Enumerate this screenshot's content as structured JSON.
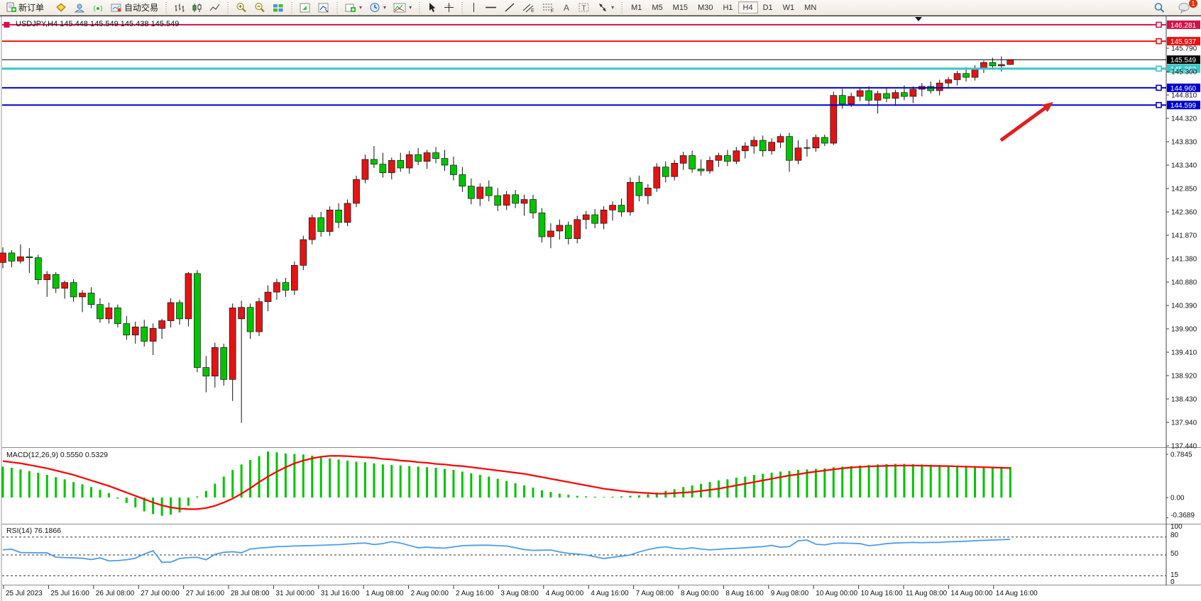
{
  "toolbar": {
    "new_order_label": "新订单",
    "autotrading_label": "自动交易",
    "timeframes": [
      "M1",
      "M5",
      "M15",
      "M30",
      "H1",
      "H4",
      "D1",
      "W1",
      "MN"
    ],
    "active_timeframe": "H4",
    "notification_count": "1",
    "icon_names": [
      "new-order-icon",
      "market-watch-icon",
      "profiles-icon",
      "signals-icon",
      "autotrading-icon",
      "bar-chart-icon",
      "candlestick-icon",
      "line-chart-icon",
      "zoom-in-icon",
      "zoom-out-icon",
      "tile-windows-icon",
      "indicators-icon",
      "objects-list-icon",
      "new-chart-icon",
      "periods-icon",
      "templates-icon",
      "cursor-icon",
      "crosshair-icon",
      "vertical-line-icon",
      "horizontal-line-icon",
      "trendline-icon",
      "equidistant-channel-icon",
      "fibonacci-icon",
      "text-icon",
      "text-label-icon",
      "arrow-objects-icon",
      "search-icon",
      "chat-icon"
    ]
  },
  "chart": {
    "title": "USDJPY,H4 145.448 145.549 145.438 145.549",
    "macd_label": "MACD(12,26,9) 0.5550 0.5329",
    "rsi_label": "RSI(14) 76.1866",
    "price_axis_ticks": [
      "145.790",
      "145.300",
      "144.810",
      "144.320",
      "143.830",
      "143.340",
      "142.850",
      "142.360",
      "141.870",
      "141.380",
      "140.880",
      "140.390",
      "139.900",
      "139.410",
      "138.920",
      "138.430",
      "137.940",
      "137.440"
    ],
    "macd_axis_ticks": [
      "0.7845",
      "0.00",
      "-0.3689"
    ],
    "rsi_axis_ticks": [
      "100",
      "80",
      "50",
      "15",
      "0"
    ],
    "time_axis_labels": [
      "25 Jul 2023",
      "25 Jul 16:00",
      "26 Jul 08:00",
      "27 Jul 00:00",
      "27 Jul 16:00",
      "28 Jul 08:00",
      "31 Jul 00:00",
      "31 Jul 16:00",
      "1 Aug 08:00",
      "2 Aug 00:00",
      "2 Aug 16:00",
      "3 Aug 08:00",
      "4 Aug 00:00",
      "4 Aug 16:00",
      "7 Aug 08:00",
      "8 Aug 00:00",
      "8 Aug 16:00",
      "9 Aug 08:00",
      "10 Aug 00:00",
      "10 Aug 16:00",
      "11 Aug 08:00",
      "14 Aug 00:00",
      "14 Aug 16:00"
    ],
    "colors": {
      "bull_candle": "#e21414",
      "bear_candle": "#00c400",
      "macd_histogram": "#00c400",
      "macd_signal": "#ff0000",
      "rsi_line": "#4a9dea",
      "annotation_arrow": "#e01f1f",
      "hline_crimson": "#d21349",
      "hline_red": "#ee1111",
      "hline_cyan": "#35c8c8",
      "hline_blue": "#0000cd",
      "current_price_badge": "#000000"
    },
    "horizontal_lines": [
      {
        "price": 146.281,
        "label": "146.281",
        "color": "#d21349",
        "width": 2,
        "left_handle": true
      },
      {
        "price": 145.937,
        "label": "145.937",
        "color": "#ee1111",
        "width": 2,
        "left_handle": false
      },
      {
        "price": 145.549,
        "label": "145.549",
        "color": "#000000",
        "width": 1,
        "left_handle": false
      },
      {
        "price": 145.362,
        "label": "145.362",
        "color": "#35c8c8",
        "width": 3,
        "left_handle": false
      },
      {
        "price": 144.96,
        "label": "144.960",
        "color": "#0000cd",
        "width": 2,
        "left_handle": false
      },
      {
        "price": 144.599,
        "label": "144.599",
        "color": "#0000cd",
        "width": 2,
        "left_handle": false
      }
    ],
    "current_price": "145.549"
  },
  "chart_data": {
    "type": "candlestick",
    "symbol": "USDJPY",
    "timeframe": "H4",
    "title": "USDJPY,H4 145.448 145.549 145.438 145.549",
    "ylim": [
      137.44,
      146.4
    ],
    "price_gridline_step": 0.49,
    "x_range_labels": [
      "25 Jul 2023",
      "14 Aug 16:00"
    ],
    "ohlc": [
      [
        141.3,
        141.62,
        141.18,
        141.5
      ],
      [
        141.5,
        141.56,
        141.2,
        141.33
      ],
      [
        141.33,
        141.68,
        141.28,
        141.42
      ],
      [
        141.42,
        141.6,
        141.08,
        141.4
      ],
      [
        141.4,
        141.46,
        140.84,
        140.94
      ],
      [
        140.94,
        141.12,
        140.58,
        141.05
      ],
      [
        141.05,
        141.1,
        140.66,
        140.76
      ],
      [
        140.76,
        140.92,
        140.54,
        140.88
      ],
      [
        140.88,
        140.95,
        140.48,
        140.58
      ],
      [
        140.58,
        140.72,
        140.26,
        140.66
      ],
      [
        140.66,
        140.78,
        140.34,
        140.42
      ],
      [
        140.42,
        140.55,
        140.04,
        140.12
      ],
      [
        140.12,
        140.46,
        140.02,
        140.35
      ],
      [
        140.35,
        140.42,
        139.94,
        140.02
      ],
      [
        140.02,
        140.18,
        139.68,
        139.78
      ],
      [
        139.78,
        140.06,
        139.6,
        139.95
      ],
      [
        139.95,
        140.1,
        139.54,
        139.65
      ],
      [
        139.65,
        140.02,
        139.36,
        139.92
      ],
      [
        139.92,
        140.12,
        139.7,
        140.08
      ],
      [
        140.08,
        140.55,
        139.94,
        140.46
      ],
      [
        140.46,
        140.52,
        140.0,
        140.12
      ],
      [
        140.12,
        141.1,
        139.96,
        141.07
      ],
      [
        141.07,
        141.14,
        139.0,
        139.1
      ],
      [
        139.1,
        139.34,
        138.58,
        138.92
      ],
      [
        138.92,
        139.62,
        138.68,
        139.52
      ],
      [
        139.52,
        139.6,
        138.72,
        138.85
      ],
      [
        138.85,
        140.44,
        138.4,
        140.35
      ],
      [
        140.12,
        140.5,
        137.94,
        140.36
      ],
      [
        140.36,
        140.44,
        139.7,
        139.85
      ],
      [
        139.85,
        140.56,
        139.76,
        140.48
      ],
      [
        140.48,
        140.82,
        140.28,
        140.68
      ],
      [
        140.68,
        140.96,
        140.52,
        140.88
      ],
      [
        140.88,
        140.98,
        140.58,
        140.72
      ],
      [
        140.72,
        141.32,
        140.62,
        141.24
      ],
      [
        141.24,
        141.86,
        141.14,
        141.78
      ],
      [
        141.78,
        142.3,
        141.68,
        142.24
      ],
      [
        142.24,
        142.36,
        141.84,
        141.95
      ],
      [
        141.95,
        142.48,
        141.86,
        142.4
      ],
      [
        142.4,
        142.54,
        142.02,
        142.14
      ],
      [
        142.14,
        142.62,
        142.06,
        142.54
      ],
      [
        142.54,
        143.12,
        142.46,
        143.04
      ],
      [
        143.04,
        143.56,
        142.96,
        143.46
      ],
      [
        143.46,
        143.74,
        143.28,
        143.36
      ],
      [
        143.36,
        143.6,
        143.08,
        143.18
      ],
      [
        143.18,
        143.5,
        143.04,
        143.44
      ],
      [
        143.44,
        143.6,
        143.2,
        143.28
      ],
      [
        143.28,
        143.64,
        143.16,
        143.56
      ],
      [
        143.56,
        143.7,
        143.34,
        143.42
      ],
      [
        143.42,
        143.66,
        143.26,
        143.6
      ],
      [
        143.6,
        143.72,
        143.38,
        143.48
      ],
      [
        143.48,
        143.66,
        143.22,
        143.34
      ],
      [
        143.34,
        143.52,
        143.02,
        143.14
      ],
      [
        143.14,
        143.3,
        142.78,
        142.9
      ],
      [
        142.9,
        143.06,
        142.52,
        142.64
      ],
      [
        142.64,
        142.96,
        142.48,
        142.88
      ],
      [
        142.88,
        143.02,
        142.58,
        142.7
      ],
      [
        142.7,
        142.86,
        142.38,
        142.5
      ],
      [
        142.5,
        142.8,
        142.4,
        142.72
      ],
      [
        142.72,
        142.82,
        142.44,
        142.54
      ],
      [
        142.54,
        142.72,
        142.28,
        142.62
      ],
      [
        142.62,
        142.72,
        142.22,
        142.34
      ],
      [
        142.34,
        142.44,
        141.72,
        141.84
      ],
      [
        141.84,
        142.12,
        141.6,
        141.96
      ],
      [
        141.96,
        142.2,
        141.78,
        142.08
      ],
      [
        142.08,
        142.16,
        141.68,
        141.8
      ],
      [
        141.8,
        142.28,
        141.7,
        142.2
      ],
      [
        142.2,
        142.38,
        142.0,
        142.3
      ],
      [
        142.3,
        142.42,
        142.02,
        142.12
      ],
      [
        142.12,
        142.48,
        142.0,
        142.4
      ],
      [
        142.4,
        142.58,
        142.18,
        142.5
      ],
      [
        142.5,
        142.64,
        142.26,
        142.36
      ],
      [
        142.36,
        143.08,
        142.28,
        142.98
      ],
      [
        142.98,
        143.12,
        142.58,
        142.7
      ],
      [
        142.7,
        142.94,
        142.52,
        142.86
      ],
      [
        142.86,
        143.38,
        142.78,
        143.3
      ],
      [
        143.3,
        143.42,
        142.98,
        143.1
      ],
      [
        143.1,
        143.45,
        143.02,
        143.38
      ],
      [
        143.38,
        143.62,
        143.24,
        143.54
      ],
      [
        143.54,
        143.64,
        143.18,
        143.26
      ],
      [
        143.26,
        143.46,
        143.12,
        143.22
      ],
      [
        143.22,
        143.52,
        143.16,
        143.44
      ],
      [
        143.44,
        143.6,
        143.3,
        143.54
      ],
      [
        143.54,
        143.66,
        143.32,
        143.42
      ],
      [
        143.42,
        143.72,
        143.36,
        143.64
      ],
      [
        143.64,
        143.82,
        143.48,
        143.74
      ],
      [
        143.74,
        143.94,
        143.58,
        143.86
      ],
      [
        143.86,
        143.96,
        143.52,
        143.64
      ],
      [
        143.64,
        143.9,
        143.56,
        143.82
      ],
      [
        143.82,
        144.0,
        143.7,
        143.94
      ],
      [
        143.94,
        144.02,
        143.2,
        143.44
      ],
      [
        143.44,
        143.86,
        143.36,
        143.7
      ],
      [
        143.7,
        143.88,
        143.52,
        143.7
      ],
      [
        143.7,
        143.98,
        143.62,
        143.92
      ],
      [
        143.92,
        143.98,
        143.74,
        143.8
      ],
      [
        143.8,
        144.88,
        143.76,
        144.8
      ],
      [
        144.8,
        144.94,
        144.52,
        144.62
      ],
      [
        144.62,
        144.86,
        144.56,
        144.78
      ],
      [
        144.78,
        144.97,
        144.68,
        144.9
      ],
      [
        144.9,
        144.99,
        144.6,
        144.7
      ],
      [
        144.7,
        144.9,
        144.42,
        144.84
      ],
      [
        144.84,
        144.96,
        144.66,
        144.74
      ],
      [
        144.74,
        144.92,
        144.58,
        144.86
      ],
      [
        144.86,
        145.01,
        144.7,
        144.78
      ],
      [
        144.78,
        144.99,
        144.64,
        144.93
      ],
      [
        144.93,
        145.06,
        144.78,
        144.99
      ],
      [
        144.99,
        145.09,
        144.84,
        144.9
      ],
      [
        144.9,
        145.13,
        144.8,
        145.06
      ],
      [
        145.06,
        145.19,
        144.94,
        145.13
      ],
      [
        145.13,
        145.31,
        145.01,
        145.26
      ],
      [
        145.26,
        145.39,
        145.09,
        145.18
      ],
      [
        145.18,
        145.43,
        145.11,
        145.37
      ],
      [
        145.37,
        145.53,
        145.27,
        145.49
      ],
      [
        145.49,
        145.59,
        145.34,
        145.42
      ],
      [
        145.42,
        145.62,
        145.3,
        145.448
      ],
      [
        145.448,
        145.549,
        145.438,
        145.549
      ]
    ],
    "indicators": {
      "macd": {
        "params": [
          12,
          26,
          9
        ],
        "current_values": [
          0.555,
          0.5329
        ],
        "axis": {
          "max": 0.7845,
          "zero": 0.0,
          "min": -0.3689
        },
        "histogram": [
          0.56,
          0.54,
          0.51,
          0.48,
          0.45,
          0.41,
          0.37,
          0.33,
          0.28,
          0.24,
          0.19,
          0.14,
          0.08,
          -0.02,
          -0.1,
          -0.18,
          -0.25,
          -0.3,
          -0.33,
          -0.31,
          -0.27,
          -0.15,
          0.02,
          0.12,
          0.25,
          0.38,
          0.5,
          0.6,
          0.68,
          0.75,
          0.835,
          0.82,
          0.8,
          0.79,
          0.78,
          0.76,
          0.73,
          0.71,
          0.69,
          0.67,
          0.65,
          0.64,
          0.62,
          0.6,
          0.59,
          0.58,
          0.57,
          0.56,
          0.55,
          0.54,
          0.52,
          0.5,
          0.47,
          0.44,
          0.41,
          0.38,
          0.34,
          0.3,
          0.26,
          0.22,
          0.18,
          0.13,
          0.1,
          0.07,
          0.05,
          0.03,
          0.02,
          0.015,
          0.01,
          0.015,
          0.02,
          0.03,
          0.04,
          0.06,
          0.09,
          0.12,
          0.15,
          0.19,
          0.22,
          0.25,
          0.28,
          0.31,
          0.33,
          0.36,
          0.38,
          0.41,
          0.43,
          0.45,
          0.47,
          0.48,
          0.5,
          0.51,
          0.52,
          0.53,
          0.55,
          0.56,
          0.57,
          0.58,
          0.59,
          0.6,
          0.605,
          0.61,
          0.61,
          0.605,
          0.6,
          0.595,
          0.59,
          0.585,
          0.58,
          0.575,
          0.57,
          0.565,
          0.56,
          0.558,
          0.555
        ],
        "signal": [
          0.66,
          0.64,
          0.62,
          0.59,
          0.56,
          0.53,
          0.49,
          0.45,
          0.41,
          0.36,
          0.31,
          0.26,
          0.21,
          0.15,
          0.09,
          0.03,
          -0.03,
          -0.09,
          -0.14,
          -0.18,
          -0.2,
          -0.21,
          -0.21,
          -0.19,
          -0.15,
          -0.09,
          -0.02,
          0.07,
          0.17,
          0.28,
          0.38,
          0.47,
          0.55,
          0.62,
          0.67,
          0.71,
          0.74,
          0.755,
          0.755,
          0.75,
          0.74,
          0.73,
          0.72,
          0.7,
          0.69,
          0.67,
          0.66,
          0.64,
          0.63,
          0.61,
          0.6,
          0.58,
          0.57,
          0.55,
          0.53,
          0.51,
          0.49,
          0.47,
          0.45,
          0.43,
          0.4,
          0.37,
          0.34,
          0.31,
          0.28,
          0.25,
          0.22,
          0.19,
          0.16,
          0.14,
          0.12,
          0.1,
          0.09,
          0.08,
          0.07,
          0.07,
          0.08,
          0.09,
          0.1,
          0.12,
          0.14,
          0.16,
          0.19,
          0.22,
          0.25,
          0.28,
          0.31,
          0.34,
          0.37,
          0.4,
          0.42,
          0.45,
          0.47,
          0.49,
          0.51,
          0.53,
          0.545,
          0.555,
          0.565,
          0.57,
          0.575,
          0.578,
          0.58,
          0.58,
          0.578,
          0.575,
          0.572,
          0.57,
          0.565,
          0.56,
          0.555,
          0.55,
          0.545,
          0.54,
          0.533
        ]
      },
      "rsi": {
        "period": 14,
        "current_value": 76.1866,
        "levels": [
          80,
          50,
          15
        ],
        "values": [
          58.6,
          59.6,
          54.0,
          53.8,
          53.6,
          53.5,
          46.3,
          45.5,
          45.0,
          44.4,
          42.3,
          45.0,
          40.0,
          40.5,
          42.0,
          44.5,
          51.5,
          57.0,
          37.6,
          38.0,
          44.0,
          45.5,
          46.0,
          42.0,
          51.0,
          54.4,
          55.4,
          53.7,
          60.0,
          61.5,
          62.6,
          64.0,
          64.3,
          65.0,
          65.4,
          65.8,
          66.2,
          66.8,
          67.3,
          68.3,
          69.3,
          70.0,
          67.4,
          69.0,
          72.3,
          70.0,
          66.0,
          62.0,
          63.0,
          62.0,
          61.5,
          63.5,
          65.6,
          66.0,
          66.3,
          66.3,
          65.6,
          65.0,
          62.0,
          59.0,
          57.6,
          58.0,
          58.3,
          55.0,
          52.7,
          51.5,
          50.0,
          47.0,
          44.0,
          46.0,
          48.0,
          50.0,
          55.0,
          59.0,
          62.0,
          63.7,
          61.0,
          60.0,
          62.0,
          60.0,
          58.5,
          59.5,
          60.5,
          61.2,
          62.0,
          63.0,
          64.0,
          66.0,
          63.0,
          64.0,
          73.8,
          75.0,
          68.0,
          67.0,
          69.5,
          70.0,
          69.5,
          69.0,
          65.5,
          67.0,
          69.0,
          70.0,
          70.5,
          71.0,
          70.5,
          71.0,
          71.0,
          72.0,
          72.5,
          73.0,
          74.0,
          74.5,
          75.0,
          75.6,
          76.19
        ]
      }
    },
    "annotations": [
      {
        "type": "arrow",
        "from_xy": [
          1410,
          198
        ],
        "to_xy": [
          1484,
          144
        ],
        "color": "#e01f1f"
      }
    ]
  }
}
